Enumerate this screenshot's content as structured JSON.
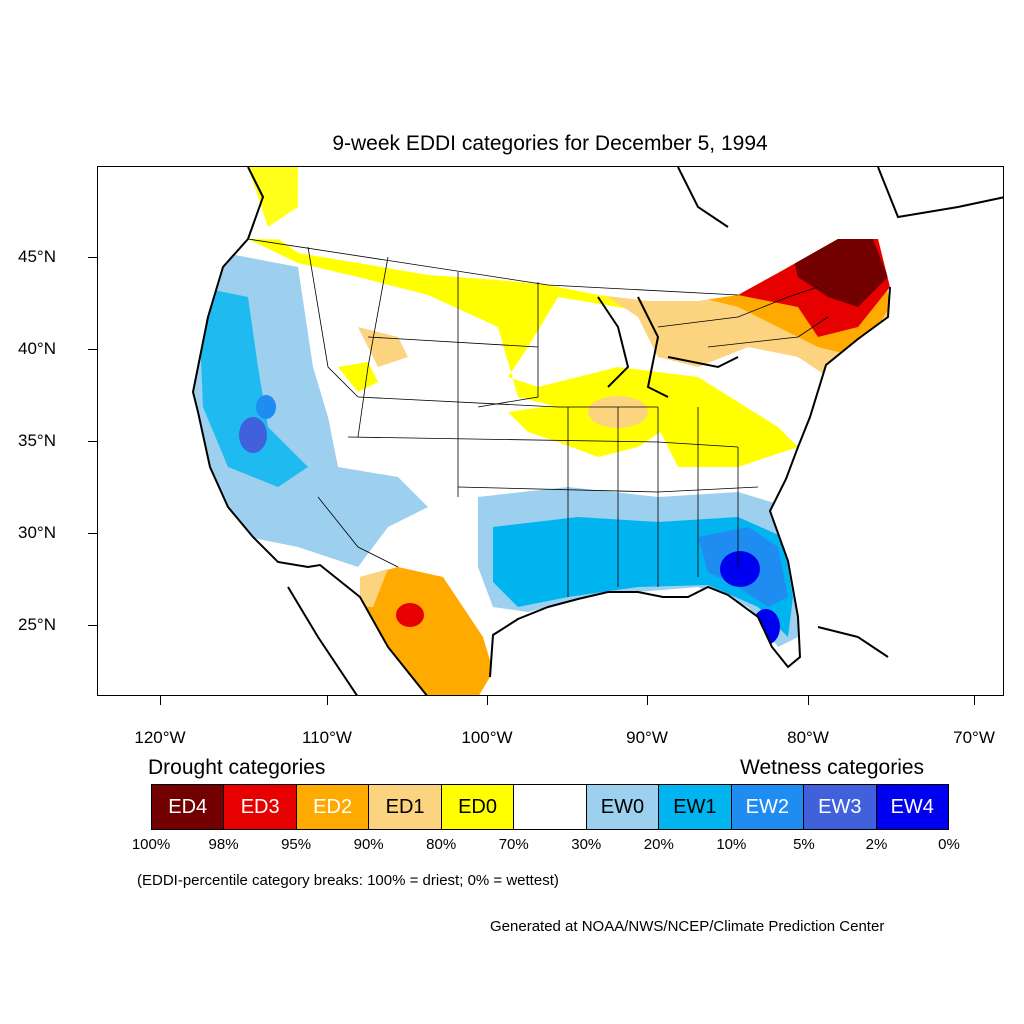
{
  "title": "9-week EDDI categories for December 5, 1994",
  "lat_labels": [
    "45°N",
    "40°N",
    "35°N",
    "30°N",
    "25°N"
  ],
  "lon_labels": [
    "120°W",
    "110°W",
    "100°W",
    "90°W",
    "80°W",
    "70°W"
  ],
  "legend": {
    "drought_title": "Drought categories",
    "wetness_title": "Wetness categories",
    "categories": [
      {
        "label": "ED4",
        "color": "#730000",
        "text_color": "#ffffff"
      },
      {
        "label": "ED3",
        "color": "#e60000",
        "text_color": "#ffffff"
      },
      {
        "label": "ED2",
        "color": "#ffaa00",
        "text_color": "#ffffff"
      },
      {
        "label": "ED1",
        "color": "#fcd37f",
        "text_color": "#000000"
      },
      {
        "label": "ED0",
        "color": "#ffff00",
        "text_color": "#000000"
      },
      {
        "label": "",
        "color": "#ffffff",
        "text_color": "#000000"
      },
      {
        "label": "EW0",
        "color": "#9dcfef",
        "text_color": "#000000"
      },
      {
        "label": "EW1",
        "color": "#00b4f0",
        "text_color": "#000000"
      },
      {
        "label": "EW2",
        "color": "#1e8cf0",
        "text_color": "#ffffff"
      },
      {
        "label": "EW3",
        "color": "#4060dc",
        "text_color": "#ffffff"
      },
      {
        "label": "EW4",
        "color": "#0000f0",
        "text_color": "#ffffff"
      }
    ],
    "breaks": [
      "100%",
      "98%",
      "95%",
      "90%",
      "80%",
      "70%",
      "30%",
      "20%",
      "10%",
      "5%",
      "2%",
      "0%"
    ]
  },
  "note": "(EDDI-percentile category breaks: 100% = driest; 0% = wettest)",
  "credit": "Generated at NOAA/NWS/NCEP/Climate Prediction Center"
}
